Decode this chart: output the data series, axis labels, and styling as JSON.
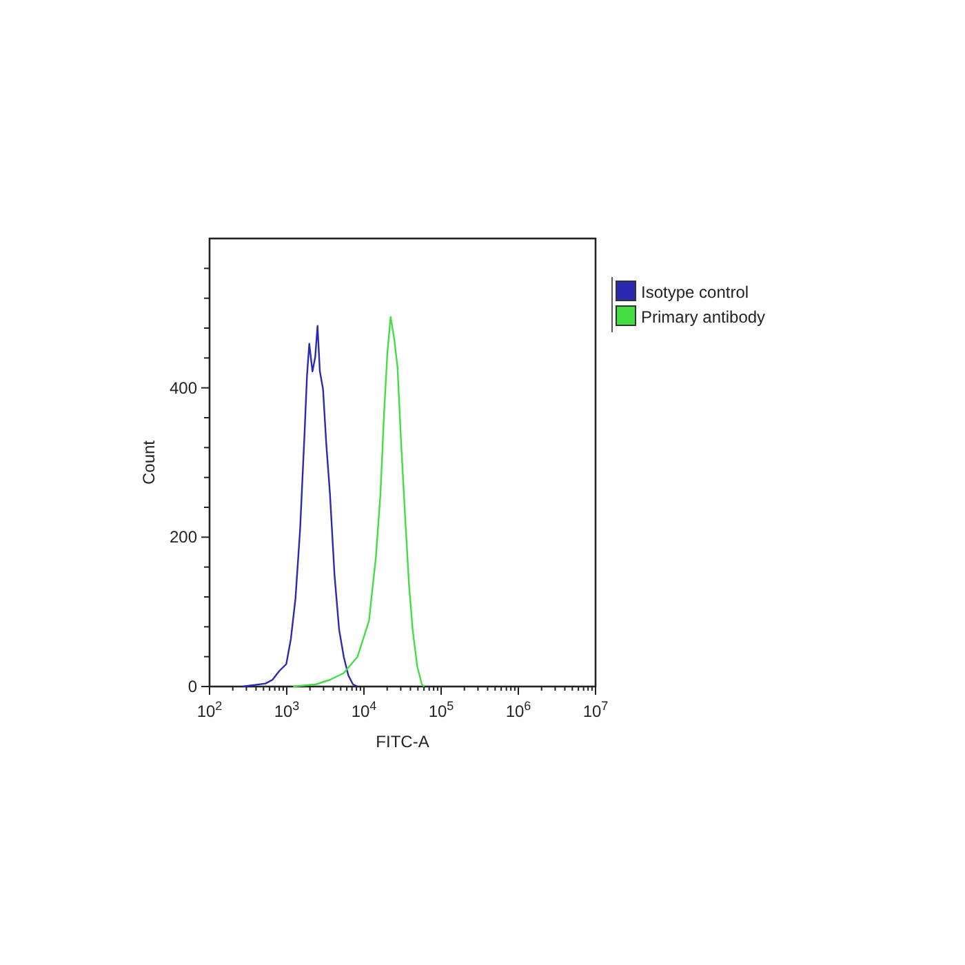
{
  "chart_data": {
    "type": "line",
    "xlabel": "FITC-A",
    "ylabel": "Count",
    "log": "x",
    "grid": false,
    "legend": "top right",
    "marker": "none",
    "line_style": "solid",
    "xlim": [
      100,
      10000000
    ],
    "ylim": [
      0,
      600
    ],
    "xticks": [
      {
        "value": 100,
        "label": "10$^{2}$"
      },
      {
        "value": 1000,
        "label": "10$^{3}$"
      },
      {
        "value": 10000,
        "label": "10$^{4}$"
      },
      {
        "value": 100000,
        "label": "10$^{5}$"
      },
      {
        "value": 1000000,
        "label": "10$^{6}$"
      },
      {
        "value": 10000000,
        "label": "10$^{7}$"
      }
    ],
    "yticks": [
      0,
      {
        "value": 40,
        "label": null
      },
      {
        "value": 80,
        "label": null
      },
      {
        "value": 120,
        "label": null
      },
      {
        "value": 160,
        "label": null
      },
      200,
      {
        "value": 240,
        "label": null
      },
      {
        "value": 280,
        "label": null
      },
      {
        "value": 320,
        "label": null
      },
      {
        "value": 360,
        "label": null
      },
      400,
      {
        "value": 440,
        "label": null
      },
      {
        "value": 480,
        "label": null
      },
      {
        "value": 520,
        "label": null
      },
      {
        "value": 560,
        "label": null
      }
    ],
    "series": [
      {
        "name": "Isotype control",
        "color": "#2a2ab0",
        "x": [
          268,
          532,
          653,
          803,
          986,
          1132,
          1298,
          1489,
          1708,
          1829,
          1959,
          2154,
          2337,
          2505,
          2685,
          2954,
          3250,
          3630,
          4159,
          4772,
          5472,
          6277,
          7197,
          8260
        ],
        "values": [
          0,
          4,
          9,
          21,
          30,
          64,
          118,
          210,
          343,
          416,
          459,
          422,
          441,
          483,
          422,
          398,
          325,
          258,
          149,
          76,
          40,
          15,
          3,
          0
        ]
      },
      {
        "name": "Primary antibody",
        "color": "#44dd44",
        "x": [
          1211,
          2404,
          3630,
          5472,
          8260,
          11620,
          14280,
          16370,
          18270,
          20120,
          22150,
          24710,
          27210,
          30350,
          33880,
          38320,
          42750,
          49010,
          56210,
          60230
        ],
        "values": [
          0,
          3,
          9,
          18,
          40,
          88,
          173,
          258,
          368,
          447,
          495,
          465,
          428,
          325,
          234,
          137,
          76,
          27,
          3,
          0
        ]
      }
    ]
  }
}
